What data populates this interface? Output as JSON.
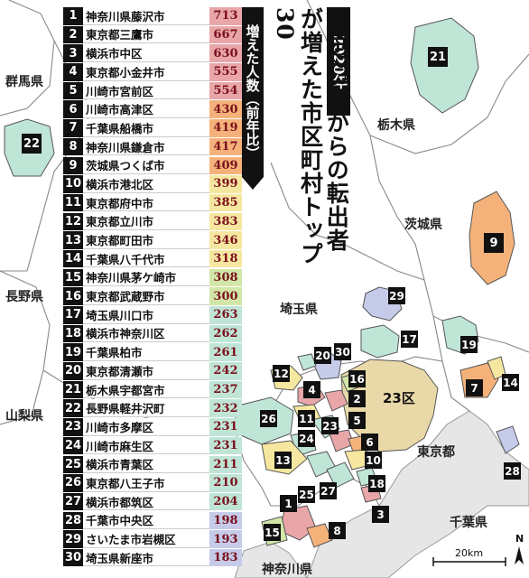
{
  "title": {
    "year_badge": "2020年",
    "headline": "東京23区からの転出者が増えた市区町村トップ30",
    "subhead": "増えた人数（前年比）"
  },
  "ranking": [
    {
      "rank": "1",
      "city": "神奈川県藤沢市",
      "value": "713",
      "color": "#e8a6a8"
    },
    {
      "rank": "2",
      "city": "東京都三鷹市",
      "value": "667",
      "color": "#e8a6a8"
    },
    {
      "rank": "3",
      "city": "横浜市中区",
      "value": "630",
      "color": "#e8a6a8"
    },
    {
      "rank": "4",
      "city": "東京都小金井市",
      "value": "555",
      "color": "#e8a6a8"
    },
    {
      "rank": "5",
      "city": "川崎市宮前区",
      "value": "554",
      "color": "#e8a6a8"
    },
    {
      "rank": "6",
      "city": "川崎市高津区",
      "value": "430",
      "color": "#f4b27a"
    },
    {
      "rank": "7",
      "city": "千葉県船橋市",
      "value": "419",
      "color": "#f4b27a"
    },
    {
      "rank": "8",
      "city": "神奈川県鎌倉市",
      "value": "417",
      "color": "#f4b27a"
    },
    {
      "rank": "9",
      "city": "茨城県つくば市",
      "value": "409",
      "color": "#f4b27a"
    },
    {
      "rank": "10",
      "city": "横浜市港北区",
      "value": "399",
      "color": "#f6e7a0"
    },
    {
      "rank": "11",
      "city": "東京都府中市",
      "value": "385",
      "color": "#f6e7a0"
    },
    {
      "rank": "12",
      "city": "東京都立川市",
      "value": "383",
      "color": "#f6e7a0"
    },
    {
      "rank": "13",
      "city": "東京都町田市",
      "value": "346",
      "color": "#f6e7a0"
    },
    {
      "rank": "14",
      "city": "千葉県八千代市",
      "value": "318",
      "color": "#f6e7a0"
    },
    {
      "rank": "15",
      "city": "神奈川県茅ケ崎市",
      "value": "308",
      "color": "#d2e7a7"
    },
    {
      "rank": "16",
      "city": "東京都武蔵野市",
      "value": "300",
      "color": "#d2e7a7"
    },
    {
      "rank": "17",
      "city": "埼玉県川口市",
      "value": "263",
      "color": "#bfe5d6"
    },
    {
      "rank": "18",
      "city": "横浜市神奈川区",
      "value": "262",
      "color": "#bfe5d6"
    },
    {
      "rank": "19",
      "city": "千葉県柏市",
      "value": "261",
      "color": "#bfe5d6"
    },
    {
      "rank": "20",
      "city": "東京都清瀬市",
      "value": "242",
      "color": "#bfe5d6"
    },
    {
      "rank": "21",
      "city": "栃木県宇都宮市",
      "value": "237",
      "color": "#bfe5d6"
    },
    {
      "rank": "22",
      "city": "長野県軽井沢町",
      "value": "232",
      "color": "#bfe5d6"
    },
    {
      "rank": "23",
      "city": "川崎市多摩区",
      "value": "231",
      "color": "#bfe5d6"
    },
    {
      "rank": "24",
      "city": "川崎市麻生区",
      "value": "231",
      "color": "#bfe5d6"
    },
    {
      "rank": "25",
      "city": "横浜市青葉区",
      "value": "211",
      "color": "#bfe5d6"
    },
    {
      "rank": "26",
      "city": "東京都八王子市",
      "value": "210",
      "color": "#bfe5d6"
    },
    {
      "rank": "27",
      "city": "横浜市都筑区",
      "value": "204",
      "color": "#bfe5d6"
    },
    {
      "rank": "28",
      "city": "千葉市中央区",
      "value": "198",
      "color": "#c5cbe9"
    },
    {
      "rank": "29",
      "city": "さいたま市岩槻区",
      "value": "193",
      "color": "#c5cbe9"
    },
    {
      "rank": "30",
      "city": "埼玉県新座市",
      "value": "183",
      "color": "#c5cbe9"
    }
  ],
  "prefectures": {
    "gunma": "群馬県",
    "tochigi": "栃木県",
    "ibaraki": "茨城県",
    "nagano": "長野県",
    "saitama": "埼玉県",
    "yamanashi": "山梨県",
    "tokyo": "東京都",
    "chiba": "千葉県",
    "kanagawa": "神奈川県"
  },
  "map_labels": {
    "tokyo23": "23区",
    "scale": "20km",
    "north": "N"
  },
  "colors": {
    "land": "#ffffff",
    "sea": "#e6e6e6",
    "tokyo23": "#e9d9a8",
    "tier1": "#e8a6a8",
    "tier2": "#f4b27a",
    "tier3": "#f6e7a0",
    "tier4": "#d2e7a7",
    "tier5": "#bfe5d6",
    "tier6": "#c5cbe9",
    "value_text": "#7a0f1c"
  }
}
